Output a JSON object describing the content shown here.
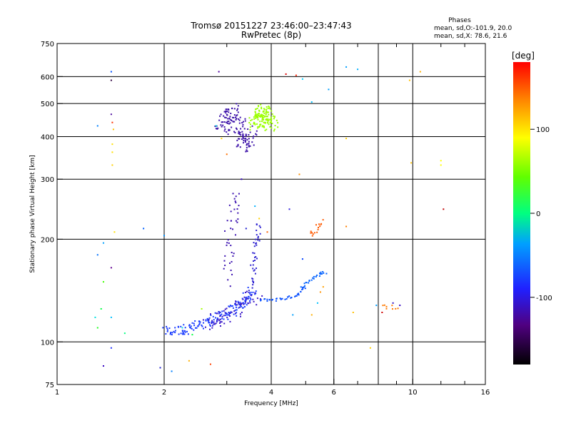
{
  "chart_data": {
    "type": "scatter",
    "title": "Tromsø 20151227 23:46:00–23:47:43",
    "subtitle": "RwPretec (8p)",
    "phases_box": {
      "heading": "Phases",
      "line_o": "mean, sd,O:-101.9, 20.0",
      "line_x": "mean, sd,X:  78.6, 21.6"
    },
    "xlabel": "Frequency [MHz]",
    "ylabel": "Stationary phase Virtual Height [km]",
    "x_scale": "log",
    "y_scale": "log",
    "xlim": [
      1,
      16
    ],
    "ylim": [
      75,
      750
    ],
    "x_ticks": [
      1,
      2,
      4,
      6,
      10,
      16
    ],
    "x_tick_labels": [
      "1",
      "2",
      "4",
      "6",
      "10",
      "16"
    ],
    "x_grid": [
      2,
      4,
      6,
      8,
      10
    ],
    "x_minor": [
      3,
      5,
      7,
      9,
      12,
      14
    ],
    "y_ticks": [
      75,
      100,
      200,
      300,
      400,
      500,
      600,
      750
    ],
    "y_tick_labels": [
      "75",
      "100",
      "200",
      "300",
      "400",
      "500",
      "600",
      "750"
    ],
    "y_grid": [
      100,
      200,
      300,
      400,
      500,
      600
    ],
    "grid": true,
    "colorbar": {
      "label": "[deg]",
      "min": -180,
      "max": 180,
      "ticks": [
        100,
        0,
        -100
      ],
      "tick_labels": [
        "100",
        "0",
        "-100"
      ]
    },
    "clusters": [
      {
        "name": "o-trace-low",
        "phase": -110,
        "color": "#1a3cff",
        "x": [
          2.0,
          2.2,
          2.4,
          2.6,
          2.8,
          3.0,
          3.2,
          3.4,
          3.55
        ],
        "y": [
          107,
          108,
          110,
          113,
          117,
          121,
          126,
          132,
          140
        ],
        "count": 160,
        "spread": 0.035
      },
      {
        "name": "o-trace-purple-low",
        "phase": -130,
        "color": "#3a18c8",
        "x": [
          2.6,
          2.8,
          3.0,
          3.2,
          3.4,
          3.6
        ],
        "y": [
          112,
          116,
          120,
          125,
          131,
          138
        ],
        "count": 70,
        "spread": 0.05
      },
      {
        "name": "o-trace-vertical",
        "phase": -125,
        "color": "#2b1fd0",
        "x": [
          3.5,
          3.55,
          3.6,
          3.65,
          3.7
        ],
        "y": [
          140,
          160,
          180,
          200,
          220
        ],
        "count": 40,
        "spread": 0.02
      },
      {
        "name": "o-trace-cusp",
        "phase": -135,
        "color": "#3a10b0",
        "x": [
          3.0,
          3.05,
          3.1,
          3.15
        ],
        "y": [
          150,
          190,
          230,
          270
        ],
        "count": 40,
        "spread": 0.04
      },
      {
        "name": "x-trace-spur",
        "phase": -105,
        "color": "#0a50ff",
        "x": [
          3.7,
          3.9,
          4.1,
          4.3,
          4.5,
          4.7,
          4.8,
          4.95
        ],
        "y": [
          132,
          133,
          133,
          134,
          135,
          137,
          140,
          145
        ],
        "count": 40,
        "spread": 0.01
      },
      {
        "name": "x-trace-rise",
        "phase": -100,
        "color": "#0060ff",
        "x": [
          4.9,
          5.1,
          5.3,
          5.5,
          5.7
        ],
        "y": [
          145,
          150,
          155,
          158,
          160
        ],
        "count": 25,
        "spread": 0.01
      },
      {
        "name": "f-layer-purple",
        "phase": -140,
        "color": "#3b10a8",
        "x": [
          2.9,
          3.0,
          3.1,
          3.2,
          3.3,
          3.4,
          3.5
        ],
        "y": [
          420,
          450,
          480,
          440,
          400,
          370,
          420
        ],
        "count": 140,
        "spread": 0.05
      },
      {
        "name": "f-layer-green",
        "phase": 55,
        "color": "#9bff00",
        "x": [
          3.6,
          3.7,
          3.8,
          3.9,
          4.0
        ],
        "y": [
          430,
          460,
          480,
          450,
          430
        ],
        "count": 140,
        "spread": 0.045
      },
      {
        "name": "orange-patch",
        "phase": 150,
        "color": "#ff5a00",
        "x": [
          5.15,
          5.3,
          5.45,
          5.6
        ],
        "y": [
          205,
          210,
          220,
          225
        ],
        "count": 15,
        "spread": 0.02
      },
      {
        "name": "orange-right",
        "phase": 140,
        "color": "#ff7a00",
        "x": [
          8.2,
          8.6,
          9.0
        ],
        "y": [
          128,
          126,
          127
        ],
        "count": 8,
        "spread": 0.015
      }
    ],
    "scattered_points": [
      {
        "x": 1.42,
        "y": 620,
        "phase": -90,
        "color": "#0050ff"
      },
      {
        "x": 1.42,
        "y": 585,
        "phase": -160,
        "color": "#300040"
      },
      {
        "x": 1.42,
        "y": 465,
        "phase": -150,
        "color": "#5010a0"
      },
      {
        "x": 1.43,
        "y": 440,
        "phase": 140,
        "color": "#ff3000"
      },
      {
        "x": 1.44,
        "y": 420,
        "phase": 100,
        "color": "#ffc000"
      },
      {
        "x": 1.43,
        "y": 380,
        "phase": 100,
        "color": "#ffe000"
      },
      {
        "x": 1.43,
        "y": 360,
        "phase": 90,
        "color": "#ffe000"
      },
      {
        "x": 1.43,
        "y": 330,
        "phase": 100,
        "color": "#ffd000"
      },
      {
        "x": 1.3,
        "y": 430,
        "phase": -70,
        "color": "#0080ff"
      },
      {
        "x": 1.45,
        "y": 210,
        "phase": 100,
        "color": "#ffe000"
      },
      {
        "x": 1.75,
        "y": 215,
        "phase": -90,
        "color": "#0060ff"
      },
      {
        "x": 1.35,
        "y": 195,
        "phase": -60,
        "color": "#00a0ff"
      },
      {
        "x": 1.3,
        "y": 180,
        "phase": -80,
        "color": "#0070ff"
      },
      {
        "x": 1.42,
        "y": 165,
        "phase": -150,
        "color": "#600090"
      },
      {
        "x": 1.35,
        "y": 150,
        "phase": 40,
        "color": "#40ff00"
      },
      {
        "x": 1.33,
        "y": 125,
        "phase": 20,
        "color": "#00ff40"
      },
      {
        "x": 1.28,
        "y": 118,
        "phase": -20,
        "color": "#00e0e0"
      },
      {
        "x": 1.42,
        "y": 118,
        "phase": -40,
        "color": "#00c0ff"
      },
      {
        "x": 1.3,
        "y": 110,
        "phase": 30,
        "color": "#20ff20"
      },
      {
        "x": 1.55,
        "y": 106,
        "phase": 10,
        "color": "#00ff80"
      },
      {
        "x": 1.42,
        "y": 96,
        "phase": -110,
        "color": "#2030ff"
      },
      {
        "x": 1.35,
        "y": 85,
        "phase": -130,
        "color": "#3000c0"
      },
      {
        "x": 1.95,
        "y": 84,
        "phase": -110,
        "color": "#2020d0"
      },
      {
        "x": 2.1,
        "y": 82,
        "phase": -80,
        "color": "#0080ff"
      },
      {
        "x": 2.35,
        "y": 88,
        "phase": 110,
        "color": "#ffb000"
      },
      {
        "x": 2.7,
        "y": 86,
        "phase": 150,
        "color": "#ff4000"
      },
      {
        "x": 2.0,
        "y": 205,
        "phase": -70,
        "color": "#0090ff"
      },
      {
        "x": 2.85,
        "y": 620,
        "phase": -150,
        "color": "#5000a0"
      },
      {
        "x": 4.4,
        "y": 610,
        "phase": 170,
        "color": "#e00000"
      },
      {
        "x": 4.7,
        "y": 605,
        "phase": 160,
        "color": "#ff2000"
      },
      {
        "x": 6.5,
        "y": 640,
        "phase": -60,
        "color": "#00a0ff"
      },
      {
        "x": 7.0,
        "y": 630,
        "phase": -60,
        "color": "#00b0ff"
      },
      {
        "x": 10.5,
        "y": 620,
        "phase": 110,
        "color": "#ffb000"
      },
      {
        "x": 5.8,
        "y": 550,
        "phase": -70,
        "color": "#00a0ff"
      },
      {
        "x": 5.2,
        "y": 505,
        "phase": -60,
        "color": "#00c0ff"
      },
      {
        "x": 4.9,
        "y": 590,
        "phase": -50,
        "color": "#00d0ff"
      },
      {
        "x": 2.8,
        "y": 430,
        "phase": -30,
        "color": "#00e0e0"
      },
      {
        "x": 2.9,
        "y": 395,
        "phase": 100,
        "color": "#ffd000"
      },
      {
        "x": 3.0,
        "y": 355,
        "phase": 140,
        "color": "#ff7000"
      },
      {
        "x": 4.8,
        "y": 310,
        "phase": 120,
        "color": "#ff9000"
      },
      {
        "x": 6.5,
        "y": 395,
        "phase": 110,
        "color": "#ffd000"
      },
      {
        "x": 9.8,
        "y": 585,
        "phase": 110,
        "color": "#ffc000"
      },
      {
        "x": 9.9,
        "y": 335,
        "phase": 110,
        "color": "#ffc000"
      },
      {
        "x": 12.0,
        "y": 340,
        "phase": 80,
        "color": "#ffff00"
      },
      {
        "x": 12.0,
        "y": 330,
        "phase": 80,
        "color": "#ffff00"
      },
      {
        "x": 12.2,
        "y": 245,
        "phase": 170,
        "color": "#c00000"
      },
      {
        "x": 6.5,
        "y": 218,
        "phase": 130,
        "color": "#ff8000"
      },
      {
        "x": 4.5,
        "y": 245,
        "phase": -120,
        "color": "#3020e0"
      },
      {
        "x": 4.9,
        "y": 175,
        "phase": -90,
        "color": "#0040ff"
      },
      {
        "x": 2.55,
        "y": 125,
        "phase": 60,
        "color": "#a0ff00"
      },
      {
        "x": 2.4,
        "y": 105,
        "phase": 20,
        "color": "#00ff40"
      },
      {
        "x": 2.25,
        "y": 110,
        "phase": -20,
        "color": "#00e0e0"
      },
      {
        "x": 5.6,
        "y": 145,
        "phase": 120,
        "color": "#ffa000"
      },
      {
        "x": 5.5,
        "y": 140,
        "phase": 130,
        "color": "#ff9000"
      },
      {
        "x": 5.4,
        "y": 130,
        "phase": -40,
        "color": "#00c0ff"
      },
      {
        "x": 5.2,
        "y": 120,
        "phase": 110,
        "color": "#ffb000"
      },
      {
        "x": 6.8,
        "y": 122,
        "phase": 100,
        "color": "#ffc000"
      },
      {
        "x": 7.6,
        "y": 96,
        "phase": 100,
        "color": "#ffd000"
      },
      {
        "x": 4.6,
        "y": 120,
        "phase": -60,
        "color": "#00a0ff"
      },
      {
        "x": 3.3,
        "y": 300,
        "phase": -130,
        "color": "#3000c0"
      },
      {
        "x": 3.6,
        "y": 250,
        "phase": -60,
        "color": "#00b0ff"
      },
      {
        "x": 3.7,
        "y": 230,
        "phase": 100,
        "color": "#ffd000"
      },
      {
        "x": 3.9,
        "y": 210,
        "phase": 140,
        "color": "#ff6000"
      },
      {
        "x": 3.4,
        "y": 215,
        "phase": -110,
        "color": "#2020d0"
      },
      {
        "x": 8.2,
        "y": 122,
        "phase": 170,
        "color": "#d00000"
      },
      {
        "x": 9.2,
        "y": 128,
        "phase": -130,
        "color": "#3000c0"
      },
      {
        "x": 8.8,
        "y": 130,
        "phase": -130,
        "color": "#3010c0"
      },
      {
        "x": 7.9,
        "y": 128,
        "phase": -60,
        "color": "#00a0ff"
      }
    ]
  }
}
